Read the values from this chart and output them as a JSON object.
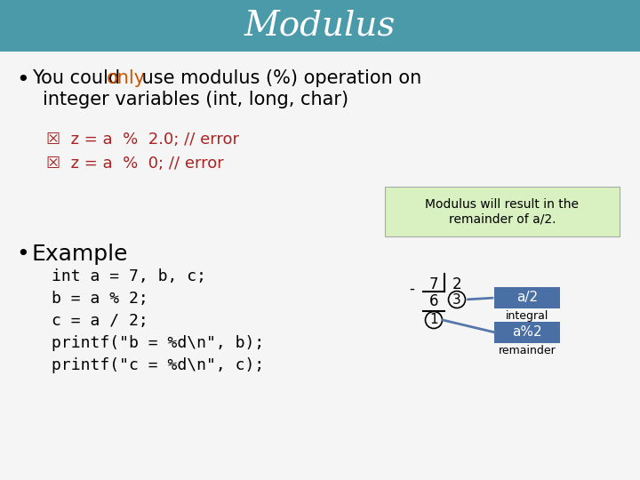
{
  "title": "Modulus",
  "title_bg_color": "#4a9aaa",
  "title_text_color": "#ffffff",
  "bg_color": "#f5f5f5",
  "error1": "☒  z = a  %  2.0; // error",
  "error2": "☒  z = a  %  0; // error",
  "error_color": "#aa2222",
  "note_text": "Modulus will result in the\nremainder of a/2.",
  "note_bg": "#d9f0c0",
  "note_border": "#aaaaaa",
  "code_lines": [
    "int a = 7, b, c;",
    "b = a % 2;",
    "c = a / 2;",
    "printf(\"b = %d\\n\", b);",
    "printf(\"c = %d\\n\", c);"
  ],
  "box_color": "#4a6fa5",
  "box_text_color": "#ffffff",
  "division_label1": "a/2",
  "division_label2": "a%2",
  "integral_label": "integral",
  "remainder_label": "remainder",
  "orange_color": "#cc5500"
}
